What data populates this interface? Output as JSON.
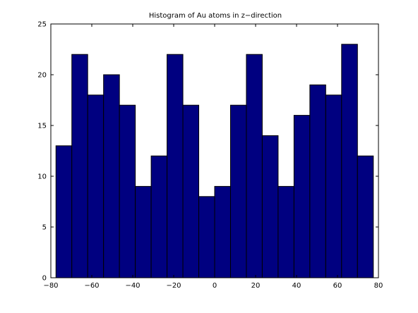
{
  "chart_data": {
    "type": "bar",
    "title": "Histogram of Au atoms in z−direction",
    "xlabel": "",
    "ylabel": "",
    "xlim": [
      -80,
      80
    ],
    "ylim": [
      0,
      25
    ],
    "xticks": [
      "−80",
      "−60",
      "−40",
      "−20",
      "0",
      "20",
      "40",
      "60",
      "80"
    ],
    "xtick_values": [
      -80,
      -60,
      -40,
      -20,
      0,
      20,
      40,
      60,
      80
    ],
    "yticks": [
      "0",
      "5",
      "10",
      "15",
      "20",
      "25"
    ],
    "ytick_values": [
      0,
      5,
      10,
      15,
      20,
      25
    ],
    "bin_edges": [
      -77.5,
      -69.75,
      -62.0,
      -54.25,
      -46.5,
      -38.75,
      -31.0,
      -23.25,
      -15.5,
      -7.75,
      0.0,
      7.75,
      15.5,
      23.25,
      31.0,
      38.75,
      46.5,
      54.25,
      62.0,
      69.75,
      77.5
    ],
    "values": [
      13,
      22,
      18,
      20,
      17,
      9,
      12,
      22,
      17,
      8,
      9,
      17,
      22,
      14,
      9,
      16,
      19,
      18,
      23,
      12
    ],
    "grid": false,
    "colors": {
      "bar_fill": "#000080",
      "bar_edge": "#000000",
      "axes": "#000000"
    }
  }
}
